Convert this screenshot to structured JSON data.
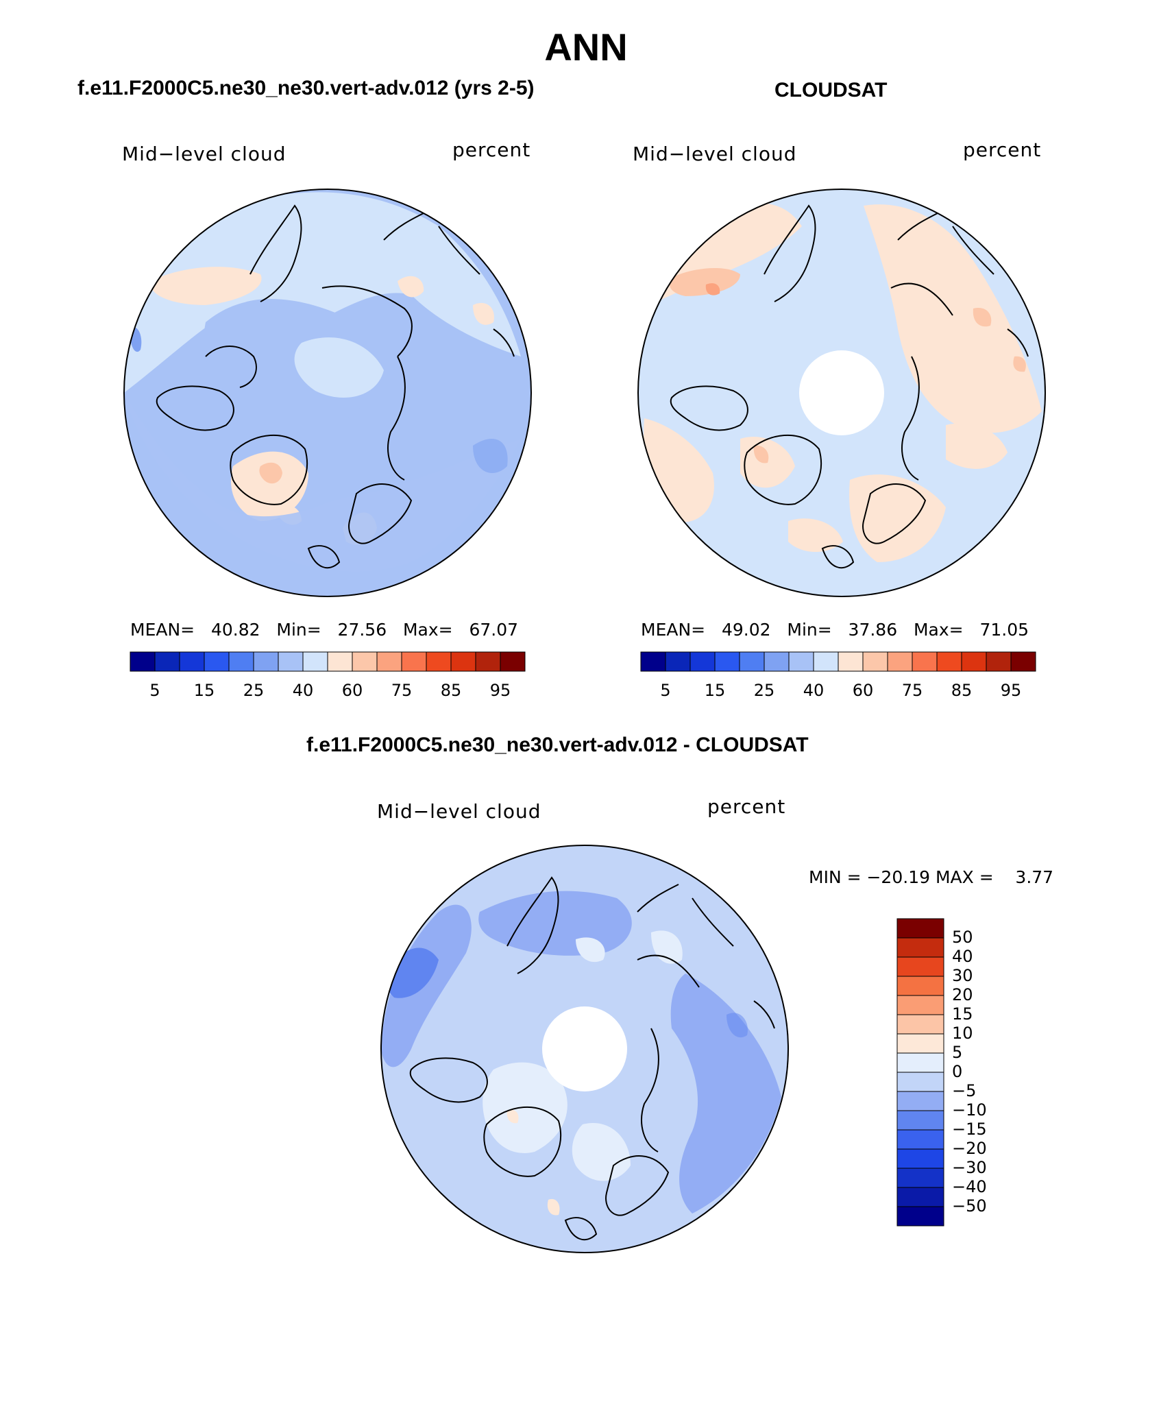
{
  "title": "ANN",
  "palette": {
    "seq": [
      "#00008b",
      "#0a26b8",
      "#1437d8",
      "#2a58f0",
      "#4f7ef2",
      "#7fa2f2",
      "#a8c2f6",
      "#d2e4fb",
      "#fde5d4",
      "#fcc7aa",
      "#fba37f",
      "#f9744d",
      "#ee4a1f",
      "#dc3410",
      "#b1230c",
      "#7a0000"
    ],
    "diff": [
      "#00008b",
      "#0a1aa8",
      "#1432c8",
      "#1e46e6",
      "#3a62ee",
      "#6085f0",
      "#93adf4",
      "#c2d5f8",
      "#e4eefc",
      "#fde8d8",
      "#fcc5a7",
      "#fa9d74",
      "#f47242",
      "#e7461e",
      "#c42c0e",
      "#7a0000"
    ]
  },
  "panels": [
    {
      "id": "model",
      "heading": "f.e11.F2000C5.ne30_ne30.vert-adv.012 (yrs 2-5)",
      "variable": "Mid−level cloud",
      "units": "percent",
      "stats": {
        "mean_label": "MEAN=",
        "mean": "40.82",
        "min_label": "Min=",
        "min": "27.56",
        "max_label": "Max=",
        "max": "67.07"
      },
      "colorbar_ticks": [
        "5",
        "15",
        "25",
        "40",
        "60",
        "75",
        "85",
        "95"
      ]
    },
    {
      "id": "obs",
      "heading": "CLOUDSAT",
      "variable": "Mid−level cloud",
      "units": "percent",
      "stats": {
        "mean_label": "MEAN=",
        "mean": "49.02",
        "min_label": "Min=",
        "min": "37.86",
        "max_label": "Max=",
        "max": "71.05"
      },
      "colorbar_ticks": [
        "5",
        "15",
        "25",
        "40",
        "60",
        "75",
        "85",
        "95"
      ]
    }
  ],
  "difference": {
    "heading": "f.e11.F2000C5.ne30_ne30.vert-adv.012 - CLOUDSAT",
    "variable": "Mid−level cloud",
    "units": "percent",
    "minmax_text": "MIN = −20.19 MAX =    3.77",
    "colorbar_ticks": [
      "50",
      "40",
      "30",
      "20",
      "15",
      "10",
      "5",
      "0",
      "−5",
      "−10",
      "−15",
      "−20",
      "−30",
      "−40",
      "−50"
    ]
  }
}
